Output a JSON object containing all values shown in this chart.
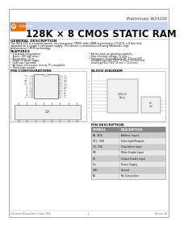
{
  "title_prelim": "Preliminary W24100",
  "title_main": "128K × 8 CMOS STATIC RAM",
  "logo_text": "Winbond",
  "logo_circle": "W",
  "section_general": "GENERAL DESCRIPTION",
  "general_desc": "The W24 100 is a normal-speed, very low-power CMOS static RAM organized as 131072 × 8 bits that operated on a single 5-volt power supply. This device is manufactured using Winbond's high performance CMOS technology.",
  "section_features": "FEATURES",
  "features_left": [
    "• Low power consumption:",
    "   Active: 280 mW (max.)",
    "• Access time: 70 ns",
    "• Single 5V power supply",
    "• Fully static operation",
    "• All inputs and outputs directly TTL compatible",
    "• Three-state outputs"
  ],
  "features_right": [
    "• Battery back-up operation capability",
    "• Data retention voltage: 2V (min.)",
    "• Packaged in 32-pin 600-mil DIP, 450-mil SOP,",
    "   standard type thin TSOP (8 mm × 20 mm) and",
    "   small type thin TSOP (8 mm × 13.4 mm)"
  ],
  "section_pin": "PIN CONFIGURATIONS",
  "section_block": "BLOCK DIAGRAM",
  "section_pin_desc": "PIN DESCRIPTION",
  "pin_desc_headers": [
    "SYMBOL",
    "DESCRIPTION"
  ],
  "pin_desc_rows": [
    [
      "A0...A16",
      "Address Inputs"
    ],
    [
      "I/O1...I/O8",
      "Data Input/Outputs"
    ],
    [
      "CS, CSE",
      "Chip Select Input"
    ],
    [
      "WE",
      "Write Enable Input"
    ],
    [
      "OE",
      "Output Enable Input"
    ],
    [
      "Vcc",
      "Power Supply"
    ],
    [
      "GND",
      "Ground"
    ],
    [
      "NC",
      "No Connection"
    ]
  ],
  "footer_left": "Publication Release Date: October 1999",
  "footer_right": "Revision: A1",
  "footer_page": "- 1 -",
  "bg_color": "#ffffff",
  "header_bg": "#c8d4f0",
  "logo_bg": "#e07010",
  "logo_border": "#cc6600",
  "border_color": "#999999",
  "text_color": "#111111",
  "table_header_bg": "#888888",
  "table_row1_bg": "#cccccc",
  "table_row2_bg": "#e8e8e8",
  "chip_fill": "#f0f0f0",
  "chip_edge": "#555555",
  "pin_left_labels": [
    "A13",
    "A8",
    "A9",
    "A11",
    "A16",
    "A15",
    "A12",
    "A7",
    "A6",
    "A5",
    "A4",
    "A3",
    "A2",
    "A1",
    "A0",
    "I/O1"
  ],
  "pin_right_labels": [
    "Vcc",
    "A10",
    "CS",
    "OE",
    "A14",
    "WE",
    "CS2",
    "I/O8",
    "I/O7",
    "I/O6",
    "I/O5",
    "I/O4",
    "I/O3",
    "I/O2",
    "GND",
    "NC"
  ]
}
